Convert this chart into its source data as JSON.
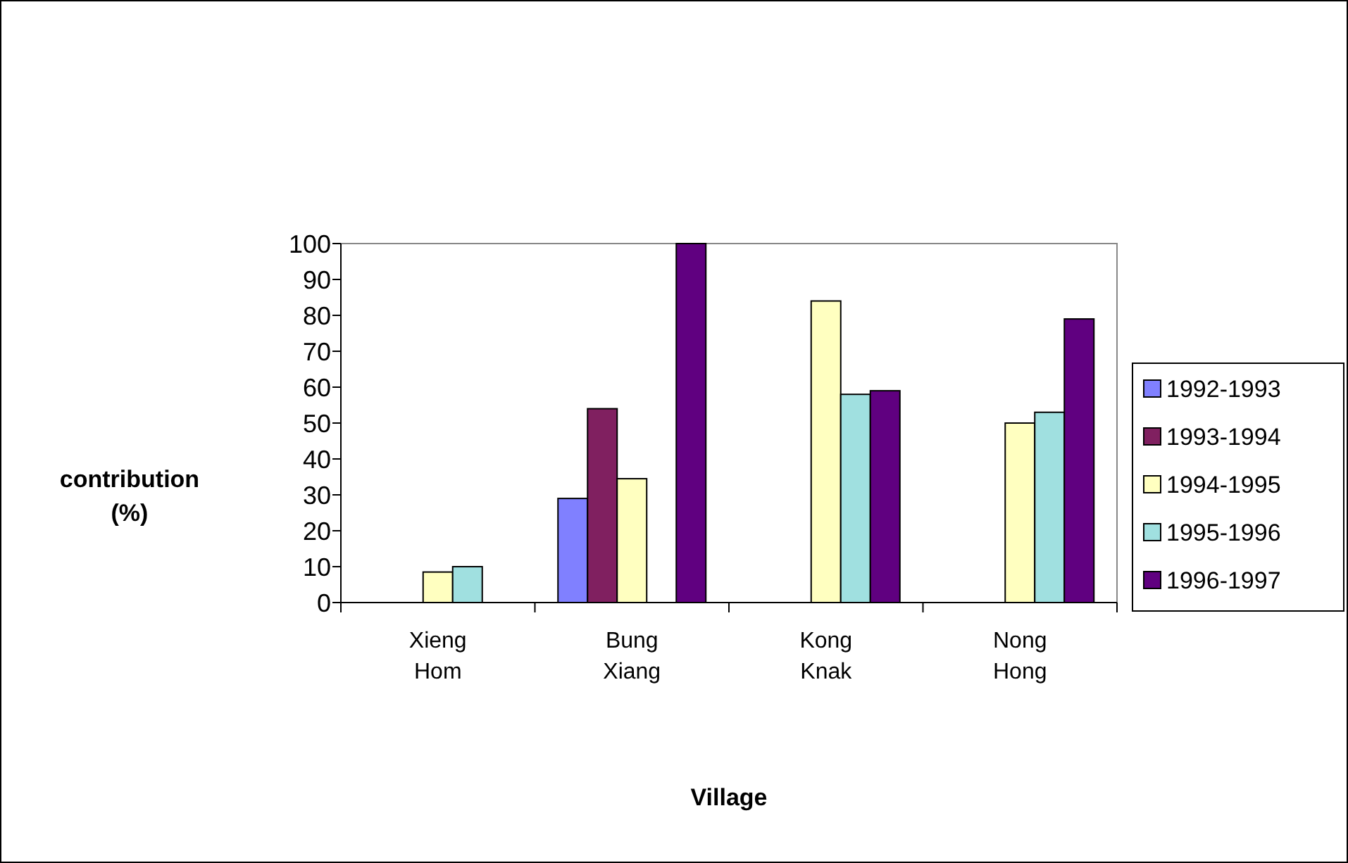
{
  "chart_data": {
    "type": "bar",
    "xlabel": "Village",
    "ylabel": "contribution (%)",
    "categories": [
      "Xieng Hom",
      "Bung Xiang",
      "Kong Knak",
      "Nong Hong"
    ],
    "series": [
      {
        "name": "1992-1993",
        "color": "#8080ff",
        "values": [
          null,
          29,
          null,
          null
        ]
      },
      {
        "name": "1993-1994",
        "color": "#802060",
        "values": [
          null,
          54,
          null,
          null
        ]
      },
      {
        "name": "1994-1995",
        "color": "#ffffc0",
        "values": [
          8.5,
          34.5,
          84,
          50
        ]
      },
      {
        "name": "1995-1996",
        "color": "#a0e0e0",
        "values": [
          10,
          null,
          58,
          53
        ]
      },
      {
        "name": "1996-1997",
        "color": "#600080",
        "values": [
          null,
          100,
          59,
          79
        ]
      }
    ],
    "ylim": [
      0,
      100
    ],
    "yticks": [
      0,
      10,
      20,
      30,
      40,
      50,
      60,
      70,
      80,
      90,
      100
    ],
    "grid": false,
    "legend": "right"
  }
}
